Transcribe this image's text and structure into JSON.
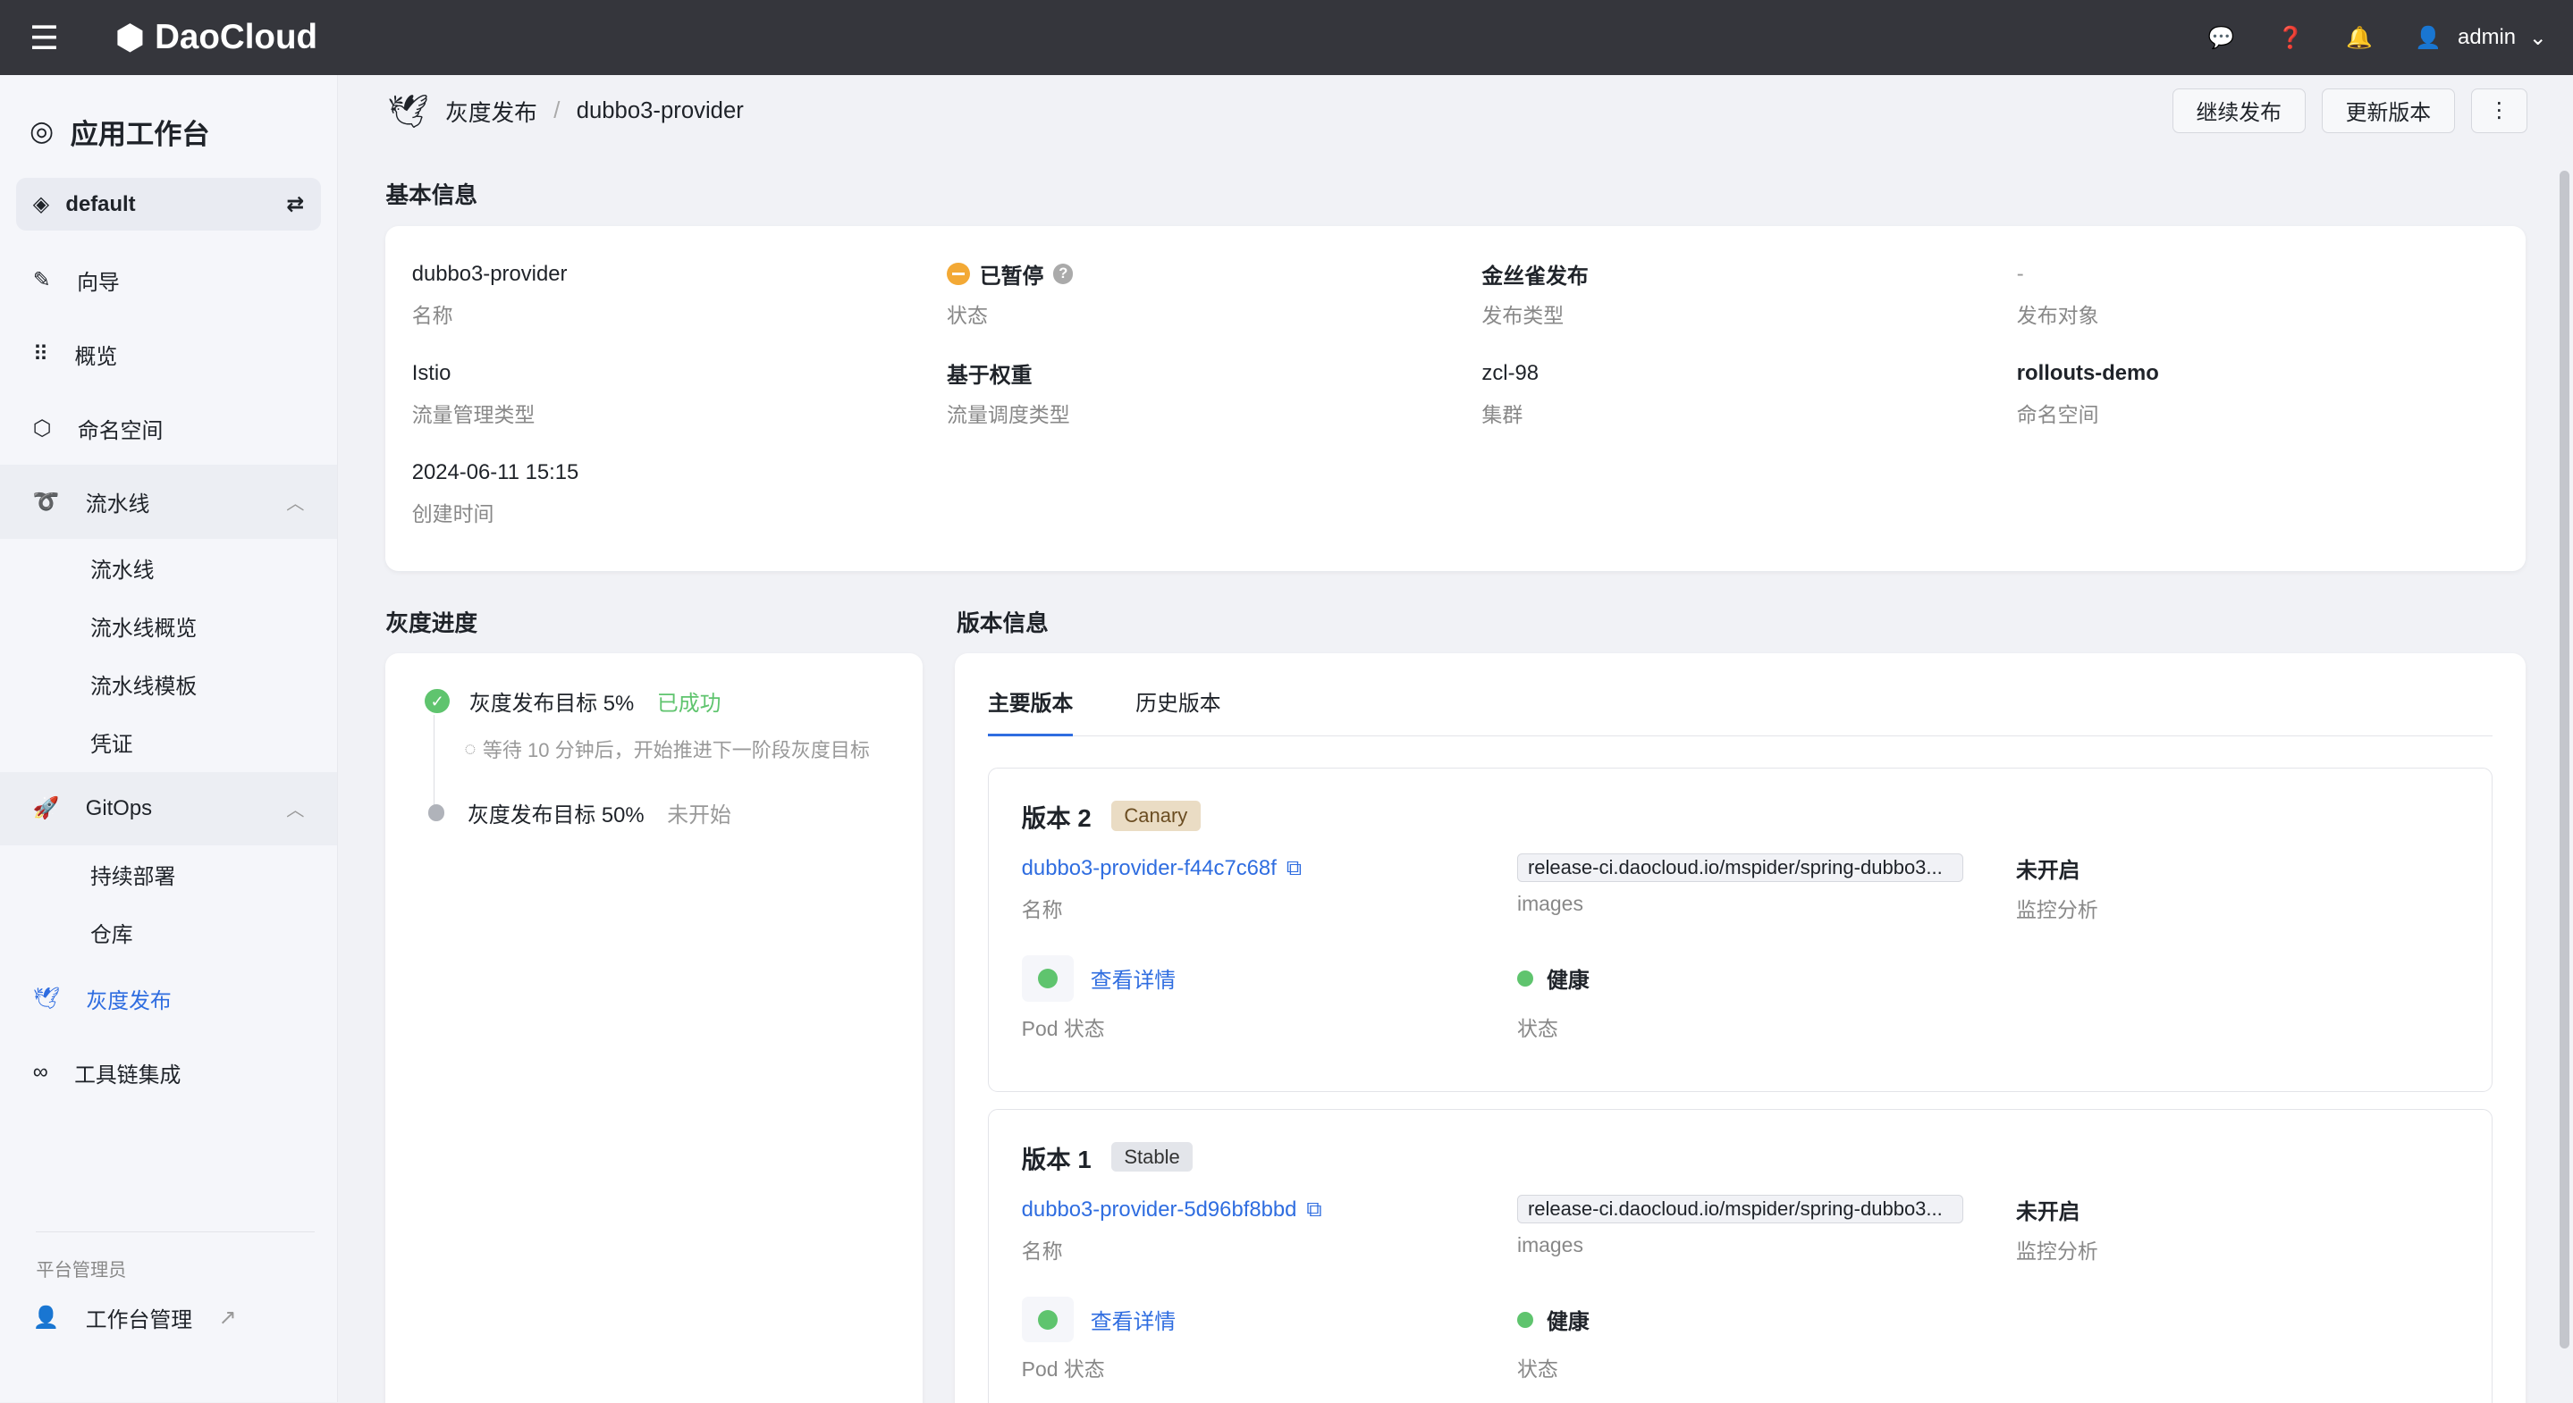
{
  "topbar": {
    "brand": "DaoCloud",
    "user": "admin",
    "icons": [
      "menu-icon",
      "message-icon",
      "help-icon",
      "bell-icon",
      "user-icon"
    ]
  },
  "sidebar": {
    "workspace": "应用工作台",
    "namespace": "default",
    "items": [
      {
        "label": "向导"
      },
      {
        "label": "概览"
      },
      {
        "label": "命名空间"
      },
      {
        "label": "流水线"
      },
      {
        "label": "GitOps"
      },
      {
        "label": "灰度发布"
      },
      {
        "label": "工具链集成"
      }
    ],
    "pipeline_sub": [
      "流水线",
      "流水线概览",
      "流水线模板",
      "凭证"
    ],
    "gitops_sub": [
      "持续部署",
      "仓库"
    ],
    "section": "平台管理员",
    "admin_item": "工作台管理"
  },
  "breadcrumb": {
    "parent": "灰度发布",
    "current": "dubbo3-provider"
  },
  "actions": {
    "continue": "继续发布",
    "update": "更新版本"
  },
  "basic": {
    "title": "基本信息",
    "fields": [
      {
        "value": "dubbo3-provider",
        "label": "名称"
      },
      {
        "value": "已暂停",
        "label": "状态"
      },
      {
        "value": "金丝雀发布",
        "label": "发布类型"
      },
      {
        "value": "-",
        "label": "发布对象"
      },
      {
        "value": "Istio",
        "label": "流量管理类型"
      },
      {
        "value": "基于权重",
        "label": "流量调度类型"
      },
      {
        "value": "zcl-98",
        "label": "集群"
      },
      {
        "value": "rollouts-demo",
        "label": "命名空间"
      },
      {
        "value": "2024-06-11 15:15",
        "label": "创建时间"
      }
    ]
  },
  "progress": {
    "title": "灰度进度",
    "steps": [
      {
        "label": "灰度发布目标 5%",
        "status": "已成功"
      },
      {
        "label": "灰度发布目标 50%",
        "status": "未开始"
      }
    ],
    "waiting": "等待 10 分钟后，开始推进下一阶段灰度目标"
  },
  "versions": {
    "title": "版本信息",
    "tabs": [
      "主要版本",
      "历史版本"
    ],
    "name_label": "名称",
    "images_label": "images",
    "monitor_label": "监控分析",
    "pod_label": "Pod 状态",
    "status_label": "状态",
    "detail_link": "查看详情",
    "list": [
      {
        "title": "版本 2",
        "tag": "Canary",
        "name": "dubbo3-provider-f44c7c68f",
        "image": "release-ci.daocloud.io/mspider/spring-dubbo3...",
        "monitor": "未开启",
        "health": "健康"
      },
      {
        "title": "版本 1",
        "tag": "Stable",
        "name": "dubbo3-provider-5d96bf8bbd",
        "image": "release-ci.daocloud.io/mspider/spring-dubbo3...",
        "monitor": "未开启",
        "health": "健康"
      }
    ]
  },
  "colors": {
    "accent": "#2f6de0",
    "success": "#5fc46e",
    "paused": "#f3a935",
    "topbar": "#35363c"
  }
}
